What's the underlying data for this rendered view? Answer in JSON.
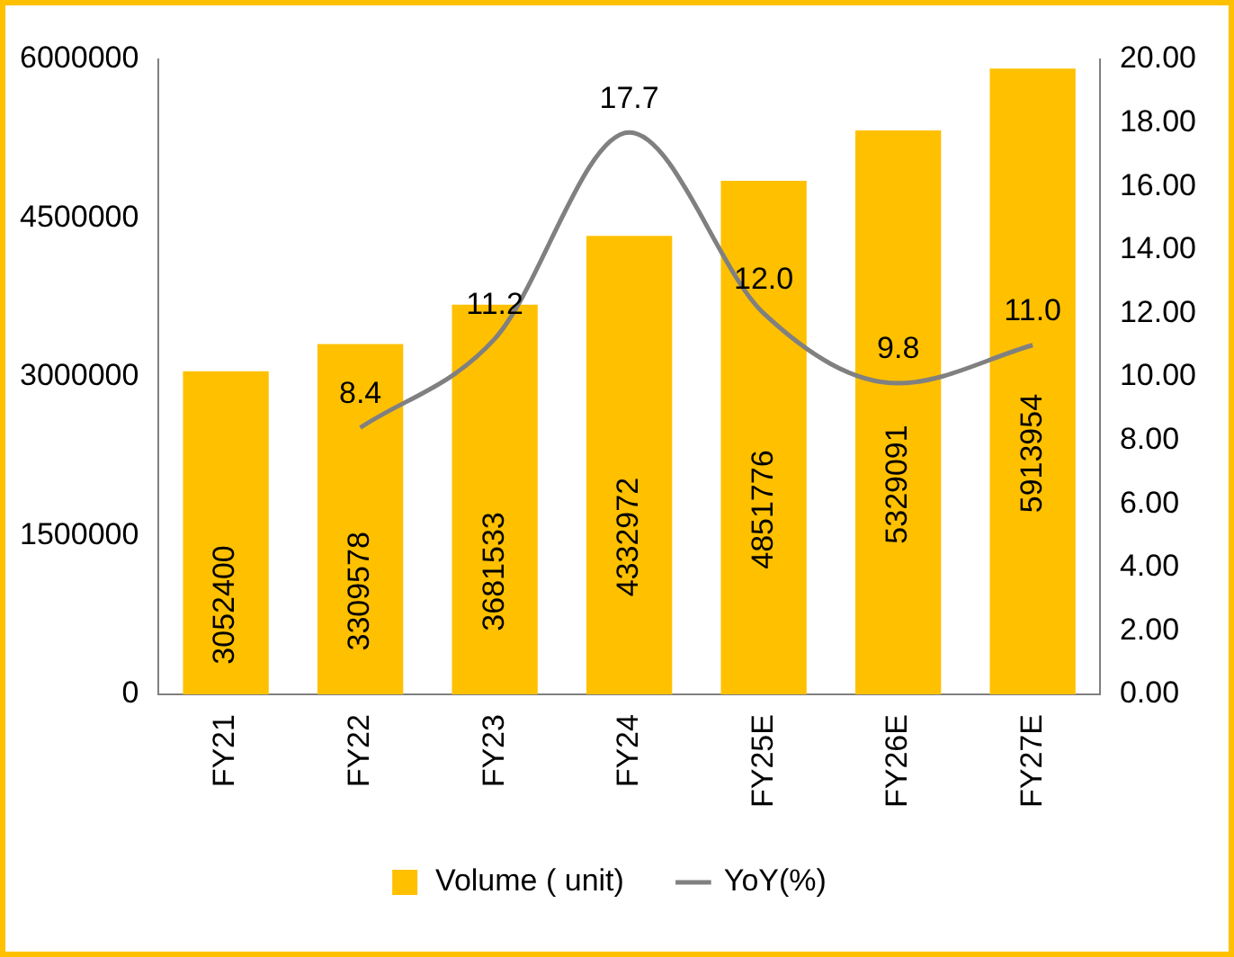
{
  "chart_data": {
    "type": "bar",
    "categories": [
      "FY21",
      "FY22",
      "FY23",
      "FY24",
      "FY25E",
      "FY26E",
      "FY27E"
    ],
    "series": [
      {
        "name": "Volume ( unit)",
        "color": "#ffc000",
        "values": [
          3052400,
          3309578,
          3681533,
          4332972,
          4851776,
          5329091,
          5913954
        ],
        "value_labels": [
          "3052400",
          "3309578",
          "3681533",
          "4332972",
          "4851776",
          "5329091",
          "5913954"
        ]
      },
      {
        "name": "YoY(%)",
        "type": "line",
        "axis": "y2",
        "color": "#808080",
        "values": [
          null,
          8.4,
          11.2,
          17.7,
          12.0,
          9.8,
          11.0
        ],
        "value_labels": [
          null,
          "8.4",
          "11.2",
          "17.7",
          "12.0",
          "9.8",
          "11.0"
        ]
      }
    ],
    "ylim": [
      0,
      6000000
    ],
    "yticks": [
      0,
      1500000,
      3000000,
      4500000,
      6000000
    ],
    "y2lim": [
      0,
      20
    ],
    "y2ticks": [
      {
        "value": 0,
        "label": "0.00"
      },
      {
        "value": 2,
        "label": "2.00"
      },
      {
        "value": 4,
        "label": "4.00"
      },
      {
        "value": 6,
        "label": "6.00"
      },
      {
        "value": 8,
        "label": "8.00"
      },
      {
        "value": 10,
        "label": "10.00"
      },
      {
        "value": 12,
        "label": "12.00"
      },
      {
        "value": 14,
        "label": "14.00"
      },
      {
        "value": 16,
        "label": "16.00"
      },
      {
        "value": 18,
        "label": "18.00"
      },
      {
        "value": 20,
        "label": "20.00"
      }
    ],
    "grid": false,
    "legend": "bottom",
    "marker": "none",
    "line_style": "solid"
  }
}
